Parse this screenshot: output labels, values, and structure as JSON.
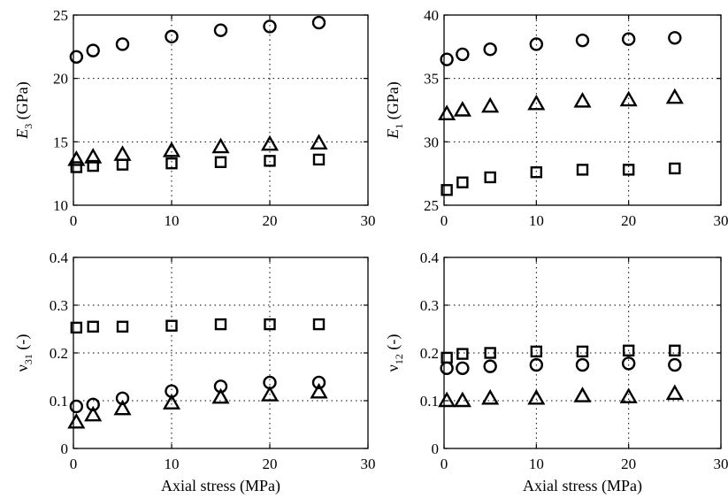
{
  "chart_data": [
    {
      "type": "scatter",
      "ylabel": {
        "main": "E",
        "sub": "3",
        "unit": " (GPa)"
      },
      "xlabel": "",
      "xlim": [
        0,
        30
      ],
      "ylim": [
        10,
        25
      ],
      "xticks": [
        "0",
        "10",
        "20",
        "30"
      ],
      "yticks": [
        "10",
        "15",
        "20",
        "25"
      ],
      "grid": true,
      "series": [
        {
          "marker": "circle",
          "x": [
            0.3,
            2,
            5,
            10,
            15,
            20,
            25
          ],
          "y": [
            21.7,
            22.2,
            22.7,
            23.3,
            23.8,
            24.1,
            24.4
          ]
        },
        {
          "marker": "triangle",
          "x": [
            0.3,
            2,
            5,
            10,
            15,
            20,
            25
          ],
          "y": [
            13.6,
            13.8,
            14.0,
            14.3,
            14.6,
            14.8,
            14.9
          ]
        },
        {
          "marker": "square",
          "x": [
            0.3,
            2,
            5,
            10,
            15,
            20,
            25
          ],
          "y": [
            13.0,
            13.1,
            13.2,
            13.3,
            13.4,
            13.5,
            13.6
          ]
        }
      ]
    },
    {
      "type": "scatter",
      "ylabel": {
        "main": "E",
        "sub": "1",
        "unit": " (GPa)"
      },
      "xlabel": "",
      "xlim": [
        0,
        30
      ],
      "ylim": [
        25,
        40
      ],
      "xticks": [
        "0",
        "10",
        "20",
        "30"
      ],
      "yticks": [
        "25",
        "30",
        "35",
        "40"
      ],
      "grid": true,
      "series": [
        {
          "marker": "circle",
          "x": [
            0.3,
            2,
            5,
            10,
            15,
            20,
            25
          ],
          "y": [
            36.5,
            36.9,
            37.3,
            37.7,
            38.0,
            38.1,
            38.2
          ]
        },
        {
          "marker": "triangle",
          "x": [
            0.3,
            2,
            5,
            10,
            15,
            20,
            25
          ],
          "y": [
            32.2,
            32.5,
            32.8,
            33.0,
            33.2,
            33.3,
            33.5
          ]
        },
        {
          "marker": "square",
          "x": [
            0.3,
            2,
            5,
            10,
            15,
            20,
            25
          ],
          "y": [
            26.2,
            26.8,
            27.2,
            27.6,
            27.8,
            27.8,
            27.9
          ]
        }
      ]
    },
    {
      "type": "scatter",
      "ylabel": {
        "main": "ν",
        "sub": "31",
        "unit": " (-)"
      },
      "xlabel": "Axial stress (MPa)",
      "xlim": [
        0,
        30
      ],
      "ylim": [
        0,
        0.4
      ],
      "xticks": [
        "0",
        "10",
        "20",
        "30"
      ],
      "yticks": [
        "0",
        "0.1",
        "0.2",
        "0.3",
        "0.4"
      ],
      "grid": true,
      "series": [
        {
          "marker": "square",
          "x": [
            0.3,
            2,
            5,
            10,
            15,
            20,
            25
          ],
          "y": [
            0.253,
            0.255,
            0.255,
            0.257,
            0.26,
            0.26,
            0.26
          ]
        },
        {
          "marker": "circle",
          "x": [
            0.3,
            2,
            5,
            10,
            15,
            20,
            25
          ],
          "y": [
            0.088,
            0.092,
            0.105,
            0.12,
            0.13,
            0.138,
            0.138
          ]
        },
        {
          "marker": "triangle",
          "x": [
            0.3,
            2,
            5,
            10,
            15,
            20,
            25
          ],
          "y": [
            0.055,
            0.07,
            0.083,
            0.095,
            0.107,
            0.112,
            0.118
          ]
        }
      ]
    },
    {
      "type": "scatter",
      "ylabel": {
        "main": "ν",
        "sub": "12",
        "unit": " (-)"
      },
      "xlabel": "Axial stress (MPa)",
      "xlim": [
        0,
        30
      ],
      "ylim": [
        0,
        0.4
      ],
      "xticks": [
        "0",
        "10",
        "20",
        "30"
      ],
      "yticks": [
        "0",
        "0.1",
        "0.2",
        "0.3",
        "0.4"
      ],
      "grid": true,
      "series": [
        {
          "marker": "square",
          "x": [
            0.3,
            2,
            5,
            10,
            15,
            20,
            25
          ],
          "y": [
            0.19,
            0.198,
            0.2,
            0.203,
            0.203,
            0.205,
            0.205
          ]
        },
        {
          "marker": "circle",
          "x": [
            0.3,
            2,
            5,
            10,
            15,
            20,
            25
          ],
          "y": [
            0.168,
            0.168,
            0.172,
            0.175,
            0.175,
            0.178,
            0.175
          ]
        },
        {
          "marker": "triangle",
          "x": [
            0.3,
            2,
            5,
            10,
            15,
            20,
            25
          ],
          "y": [
            0.1,
            0.1,
            0.105,
            0.105,
            0.11,
            0.108,
            0.115
          ]
        }
      ]
    }
  ]
}
